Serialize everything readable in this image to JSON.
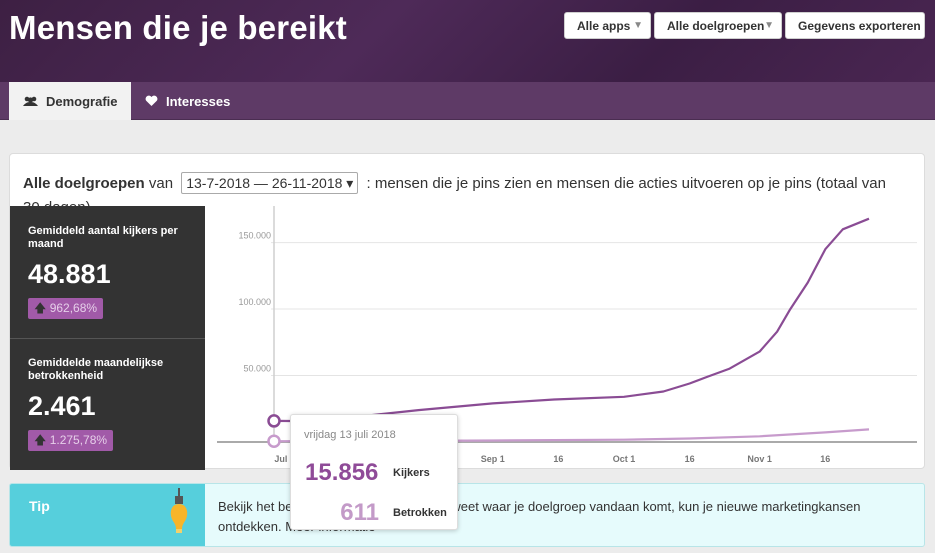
{
  "header": {
    "title": "Mensen die je bereikt",
    "buttons": {
      "apps": "Alle apps",
      "audience": "Alle doelgroepen",
      "export": "Gegevens exporteren"
    }
  },
  "tabs": [
    {
      "label": "Demografie",
      "icon": "people-icon",
      "active": true
    },
    {
      "label": "Interesses",
      "icon": "heart-icon",
      "active": false
    }
  ],
  "summary": {
    "audience": "Alle doelgroepen",
    "word_from": "van",
    "date_range": "13-7-2018 — 26-11-2018",
    "caret": "▾",
    "description": ": mensen die je pins zien en mensen die acties uitvoeren op je pins (totaal van 30 dagen)"
  },
  "stats": {
    "viewers": {
      "label": "Gemiddeld aantal kijkers per maand",
      "value": "48.881",
      "change": "962,68%"
    },
    "engagement": {
      "label": "Gemiddelde maandelijkse betrokkenheid",
      "value": "2.461",
      "change": "1.275,78%"
    }
  },
  "chart_data": {
    "type": "line",
    "x_ticks": [
      "Jul 16",
      "Aug 1",
      "16",
      "Sep 1",
      "16",
      "Oct 1",
      "16",
      "Nov 1",
      "16"
    ],
    "y_ticks": [
      "50.000",
      "100.000",
      "150.000"
    ],
    "ylim": [
      0,
      170000
    ],
    "series": [
      {
        "name": "Kijkers",
        "color": "#8a4c94",
        "x": [
          "2018-07-13",
          "2018-07-20",
          "2018-08-01",
          "2018-08-15",
          "2018-09-01",
          "2018-09-15",
          "2018-10-01",
          "2018-10-10",
          "2018-10-16",
          "2018-10-20",
          "2018-10-25",
          "2018-11-01",
          "2018-11-05",
          "2018-11-08",
          "2018-11-12",
          "2018-11-16",
          "2018-11-20",
          "2018-11-26"
        ],
        "values": [
          15856,
          15700,
          19000,
          24000,
          29000,
          32000,
          34000,
          38000,
          44000,
          49000,
          55000,
          68000,
          83000,
          100000,
          120000,
          145000,
          160000,
          168000
        ]
      },
      {
        "name": "Betrokken",
        "color": "#c79bcc",
        "x": [
          "2018-07-13",
          "2018-08-01",
          "2018-09-01",
          "2018-10-01",
          "2018-10-16",
          "2018-11-01",
          "2018-11-16",
          "2018-11-26"
        ],
        "values": [
          611,
          700,
          1100,
          1700,
          2600,
          4300,
          7200,
          9500
        ]
      }
    ]
  },
  "tooltip": {
    "date": "vrijdag 13 juli 2018",
    "viewers_value": "15.856",
    "viewers_label": "Kijkers",
    "engaged_value": "611",
    "engaged_label": "Betrokken"
  },
  "tip": {
    "label": "Tip",
    "text": "Bekijk het beste van je doelgroep. Als je weet waar je doelgroep vandaan komt, kun je nieuwe marketingkansen ontdekken. Meer informatie"
  }
}
